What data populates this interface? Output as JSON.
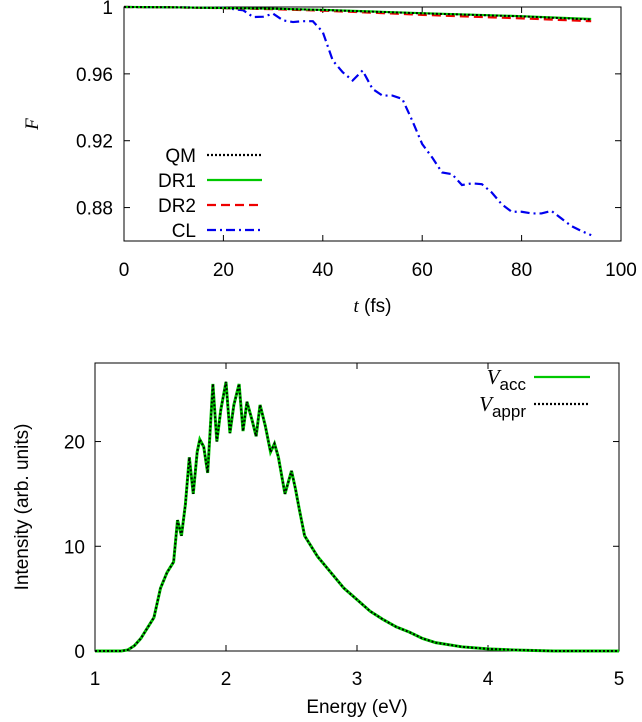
{
  "chart_data": [
    {
      "type": "line",
      "ylabel": "F",
      "xlabel_var": "t",
      "xlabel_unit": " (fs)",
      "xlim": [
        0,
        100
      ],
      "ylim": [
        0.86,
        1.0
      ],
      "xticks": [
        "0",
        "20",
        "40",
        "60",
        "80",
        "100"
      ],
      "yticks": [
        "0.88",
        "0.92",
        "0.96",
        "1"
      ],
      "grid": false,
      "legend_position": "bottom-left",
      "series": [
        {
          "name": "QM",
          "color": "#000000",
          "dash": "dotted",
          "x": [
            0,
            10,
            20,
            30,
            40,
            50,
            60,
            70,
            80,
            94
          ],
          "y": [
            1.0,
            0.9998,
            0.9994,
            0.999,
            0.9982,
            0.9972,
            0.9962,
            0.9953,
            0.9944,
            0.9925
          ]
        },
        {
          "name": "DR1",
          "color": "#00c800",
          "dash": "solid",
          "x": [
            0,
            10,
            20,
            30,
            40,
            50,
            60,
            70,
            80,
            94
          ],
          "y": [
            1.0,
            0.9998,
            0.9994,
            0.999,
            0.9983,
            0.9973,
            0.9963,
            0.9954,
            0.9945,
            0.9928
          ]
        },
        {
          "name": "DR2",
          "color": "#ee0000",
          "dash": "dashed",
          "x": [
            0,
            10,
            20,
            30,
            40,
            50,
            60,
            70,
            80,
            94
          ],
          "y": [
            1.0,
            0.9998,
            0.9993,
            0.9987,
            0.9978,
            0.9966,
            0.9953,
            0.9942,
            0.9932,
            0.9915
          ]
        },
        {
          "name": "CL",
          "color": "#0000ee",
          "dash": "dashdot",
          "x": [
            0,
            10,
            20,
            24,
            26,
            28,
            30,
            32,
            34,
            36,
            38,
            40,
            42,
            44,
            46,
            48,
            50,
            52,
            54,
            56,
            58,
            60,
            62,
            64,
            66,
            68,
            70,
            72,
            74,
            76,
            78,
            80,
            82,
            84,
            86,
            88,
            90,
            92,
            94
          ],
          "y": [
            1.0,
            0.9998,
            0.9995,
            0.998,
            0.994,
            0.9942,
            0.996,
            0.992,
            0.991,
            0.9915,
            0.9915,
            0.985,
            0.968,
            0.961,
            0.956,
            0.962,
            0.951,
            0.947,
            0.947,
            0.945,
            0.932,
            0.918,
            0.91,
            0.901,
            0.9,
            0.8935,
            0.8945,
            0.894,
            0.889,
            0.882,
            0.8775,
            0.8775,
            0.8765,
            0.8765,
            0.878,
            0.8735,
            0.869,
            0.866,
            0.8635
          ]
        }
      ]
    },
    {
      "type": "line",
      "xlabel": "Energy (eV)",
      "ylabel": "Intensity (arb. units)",
      "xlim": [
        1,
        5
      ],
      "ylim": [
        0,
        27.5
      ],
      "xticks": [
        "1",
        "2",
        "3",
        "4",
        "5"
      ],
      "yticks": [
        "0",
        "10",
        "20"
      ],
      "grid": false,
      "legend_position": "top-right",
      "series": [
        {
          "name_main": "V",
          "name_sub": "acc",
          "color": "#00c800",
          "dash": "solid",
          "x": [
            1.0,
            1.2,
            1.25,
            1.3,
            1.35,
            1.4,
            1.45,
            1.5,
            1.55,
            1.6,
            1.63,
            1.66,
            1.69,
            1.72,
            1.75,
            1.78,
            1.8,
            1.83,
            1.86,
            1.9,
            1.93,
            1.96,
            2.0,
            2.03,
            2.06,
            2.1,
            2.13,
            2.16,
            2.2,
            2.23,
            2.26,
            2.3,
            2.34,
            2.37,
            2.4,
            2.45,
            2.5,
            2.53,
            2.56,
            2.6,
            2.7,
            2.8,
            2.9,
            3.0,
            3.1,
            3.2,
            3.3,
            3.4,
            3.5,
            3.6,
            3.8,
            4.0,
            4.2,
            4.5,
            5.0
          ],
          "y": [
            0.0,
            0.0,
            0.1,
            0.5,
            1.2,
            2.2,
            3.2,
            6.0,
            7.5,
            8.5,
            12.5,
            11.0,
            14.0,
            18.5,
            15.0,
            19.0,
            20.2,
            19.5,
            17.0,
            25.5,
            20.0,
            23.0,
            25.7,
            20.8,
            23.5,
            25.5,
            21.0,
            23.8,
            22.0,
            20.5,
            23.5,
            21.5,
            19.0,
            19.8,
            18.5,
            15.0,
            17.2,
            15.5,
            13.5,
            11.0,
            9.0,
            7.5,
            6.0,
            4.9,
            3.8,
            3.0,
            2.3,
            1.8,
            1.2,
            0.8,
            0.4,
            0.2,
            0.1,
            0.0,
            0.0
          ]
        },
        {
          "name_main": "V",
          "name_sub": "appr",
          "color": "#000000",
          "dash": "dotted",
          "x": [
            1.0,
            1.2,
            1.25,
            1.3,
            1.35,
            1.4,
            1.45,
            1.5,
            1.55,
            1.6,
            1.63,
            1.66,
            1.69,
            1.72,
            1.75,
            1.78,
            1.8,
            1.83,
            1.86,
            1.9,
            1.93,
            1.96,
            2.0,
            2.03,
            2.06,
            2.1,
            2.13,
            2.16,
            2.2,
            2.23,
            2.26,
            2.3,
            2.34,
            2.37,
            2.4,
            2.45,
            2.5,
            2.53,
            2.56,
            2.6,
            2.7,
            2.8,
            2.9,
            3.0,
            3.1,
            3.2,
            3.3,
            3.4,
            3.5,
            3.6,
            3.8,
            4.0,
            4.2,
            4.5,
            5.0
          ],
          "y": [
            0.0,
            0.0,
            0.1,
            0.5,
            1.2,
            2.2,
            3.2,
            6.0,
            7.5,
            8.5,
            12.5,
            11.0,
            14.0,
            18.5,
            15.0,
            19.0,
            20.2,
            19.5,
            17.0,
            25.5,
            20.0,
            23.0,
            25.7,
            20.8,
            23.5,
            25.5,
            21.0,
            23.8,
            22.0,
            20.5,
            23.5,
            21.5,
            19.0,
            19.8,
            18.5,
            15.0,
            17.2,
            15.5,
            13.5,
            11.0,
            9.0,
            7.5,
            6.0,
            4.9,
            3.8,
            3.0,
            2.3,
            1.8,
            1.2,
            0.8,
            0.4,
            0.2,
            0.1,
            0.0,
            0.0
          ]
        }
      ]
    }
  ]
}
